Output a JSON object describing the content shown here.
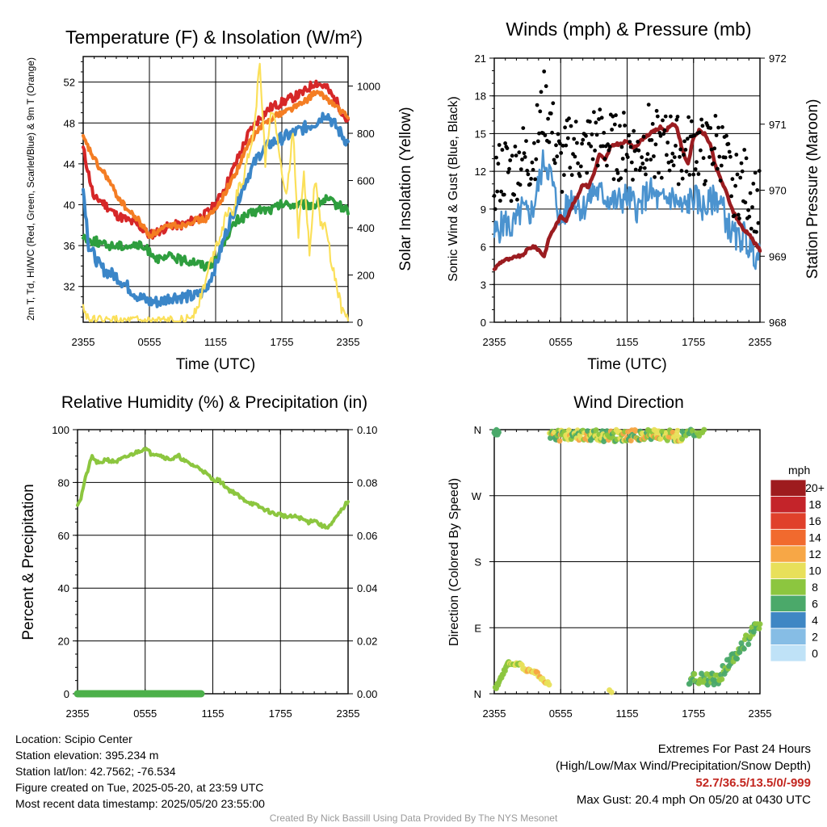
{
  "chart_data": [
    {
      "type": "line",
      "title": "Temperature (F) & Insolation (W/m²)",
      "xlabel": "Time (UTC)",
      "ylabel": "2m T, Td, HI/WC (Red, Green, Scarlet/Blue) & 9m T (Orange)",
      "y2label": "Solar Insolation (Yellow)",
      "x_ticks": [
        "2355",
        "0555",
        "1155",
        "1755",
        "2355"
      ],
      "ylim": [
        28.5,
        54.5
      ],
      "y_ticks": [
        32,
        36,
        40,
        44,
        48,
        52
      ],
      "y2lim": [
        0,
        1125
      ],
      "y2_ticks": [
        0,
        200,
        400,
        600,
        800,
        1000
      ],
      "grid": true,
      "series": [
        {
          "color": "#d62728",
          "axis": "left",
          "hours": [
            0,
            0.5,
            1,
            1.5,
            2,
            3,
            4,
            5,
            6,
            7,
            8,
            9,
            10,
            11,
            12,
            13,
            14,
            15,
            16,
            17,
            18,
            19,
            20,
            21,
            22,
            23,
            24
          ],
          "values": [
            45.5,
            43,
            40.5,
            40.5,
            40,
            39,
            38.5,
            38,
            37,
            37.5,
            38,
            38,
            38.5,
            39,
            40,
            42,
            44.5,
            47,
            48.5,
            49.5,
            50,
            50.5,
            51,
            52,
            51.5,
            50,
            48
          ]
        },
        {
          "color": "#f47d23",
          "axis": "left",
          "hours": [
            0,
            0.5,
            1,
            1.5,
            2,
            3,
            4,
            5,
            6,
            7,
            8,
            9,
            10,
            11,
            12,
            13,
            14,
            15,
            16,
            17,
            18,
            19,
            20,
            21,
            22,
            23,
            24
          ],
          "values": [
            46.5,
            45.5,
            44.5,
            43.5,
            43,
            41,
            39.5,
            38.5,
            37,
            37.5,
            38,
            38,
            38.5,
            38.5,
            39.5,
            41.5,
            43.5,
            46,
            47.5,
            48.5,
            49,
            49.5,
            50,
            51,
            50.5,
            49.5,
            48.5
          ]
        },
        {
          "color": "#2e9e3e",
          "axis": "left",
          "hours": [
            0,
            0.5,
            1,
            2,
            3,
            4,
            5,
            6,
            7,
            8,
            9,
            10,
            11,
            12,
            13,
            14,
            15,
            16,
            17,
            18,
            19,
            20,
            21,
            22,
            23,
            24
          ],
          "values": [
            37,
            36.5,
            36.5,
            36,
            36,
            36,
            36,
            35.5,
            34.5,
            35,
            34.5,
            34.5,
            34,
            34.5,
            37,
            38.5,
            39,
            39.5,
            39.5,
            40,
            40,
            40,
            40,
            40.5,
            40,
            39.5
          ]
        },
        {
          "color": "#3b86c8",
          "axis": "left",
          "hours": [
            0,
            0.25,
            0.5,
            1,
            1.5,
            2,
            3,
            4,
            5,
            6,
            7,
            8,
            9,
            10,
            11,
            12,
            13,
            14,
            15,
            16,
            17,
            18,
            19,
            20,
            21,
            22,
            23,
            24
          ],
          "values": [
            41.5,
            39,
            36,
            35,
            34,
            33.5,
            33,
            32,
            31,
            30.5,
            30.5,
            31,
            31,
            31,
            31.5,
            34,
            37.5,
            40.5,
            43,
            45,
            46,
            46.5,
            47,
            47.5,
            48,
            49,
            47.5,
            46
          ]
        },
        {
          "color": "#fbe05a",
          "axis": "right",
          "hours": [
            0,
            0.5,
            1,
            2,
            4,
            6,
            8,
            9,
            9.5,
            10,
            10.5,
            11,
            11.5,
            12,
            12.5,
            13,
            13.5,
            14,
            14.5,
            15,
            15.5,
            16,
            16.5,
            17,
            17.5,
            18,
            18.5,
            19,
            19.5,
            20,
            20.5,
            21,
            21.5,
            22,
            22.5,
            23,
            23.5,
            24
          ],
          "values": [
            60,
            15,
            5,
            3,
            2,
            2,
            2,
            3,
            10,
            40,
            90,
            160,
            250,
            320,
            380,
            470,
            450,
            560,
            600,
            720,
            820,
            1110,
            680,
            900,
            820,
            620,
            550,
            820,
            380,
            640,
            300,
            600,
            420,
            400,
            250,
            150,
            40,
            20
          ]
        }
      ]
    },
    {
      "type": "line",
      "title": "Winds (mph) & Pressure (mb)",
      "xlabel": "Time (UTC)",
      "ylabel": "Sonic Wind & Gust (Blue, Black)",
      "y2label": "Station Pressure (Maroon)",
      "x_ticks": [
        "2355",
        "0555",
        "1155",
        "1755",
        "2355"
      ],
      "ylim": [
        0,
        21
      ],
      "y_ticks": [
        0,
        3,
        6,
        9,
        12,
        15,
        18,
        21
      ],
      "y2lim": [
        968,
        972
      ],
      "y2_ticks": [
        968,
        969,
        970,
        971,
        972
      ],
      "grid": true,
      "series": [
        {
          "name": "Wind",
          "color": "#4b93cf",
          "axis": "left",
          "hours": [
            0,
            0.5,
            1,
            1.5,
            2,
            2.5,
            3,
            3.5,
            4,
            4.5,
            5,
            5.5,
            6,
            7,
            8,
            9,
            10,
            11,
            12,
            13,
            14,
            15,
            16,
            17,
            18,
            19,
            20,
            20.5,
            21,
            21.5,
            22,
            22.5,
            23,
            23.5,
            24
          ],
          "values": [
            7,
            7.5,
            8,
            7.5,
            8,
            9,
            8.5,
            9,
            11,
            13,
            12,
            10,
            8,
            10,
            9,
            10.5,
            10,
            9.5,
            10,
            9,
            10.5,
            9.5,
            10,
            9,
            10,
            9,
            10,
            9.5,
            8,
            7,
            6.5,
            7,
            6,
            5.5,
            5
          ]
        },
        {
          "name": "Pressure",
          "color": "#9b1c20",
          "axis": "right",
          "hours": [
            0,
            0.5,
            1,
            1.5,
            2,
            2.5,
            3,
            3.5,
            4,
            4.5,
            5,
            5.5,
            6,
            6.5,
            7,
            7.5,
            8,
            8.5,
            9,
            9.5,
            10,
            10.5,
            11,
            11.5,
            12,
            12.5,
            13,
            13.5,
            14,
            14.5,
            15,
            15.5,
            16,
            16.5,
            17,
            17.5,
            18,
            18.5,
            19,
            19.5,
            20,
            20.5,
            21,
            21.5,
            22,
            22.5,
            23,
            23.5,
            24
          ],
          "values": [
            968.8,
            968.9,
            968.95,
            968.95,
            969,
            969,
            969.1,
            969.15,
            969.1,
            969,
            969.3,
            969.45,
            969.6,
            969.55,
            969.75,
            969.9,
            970.1,
            970.05,
            970.25,
            970.55,
            970.45,
            970.65,
            970.7,
            970.7,
            970.75,
            970.65,
            970.7,
            970.8,
            970.85,
            970.9,
            970.95,
            970.9,
            971,
            970.95,
            970.6,
            970.4,
            970.8,
            970.9,
            970.85,
            970.7,
            970.35,
            970.15,
            969.95,
            969.7,
            969.55,
            969.4,
            969.35,
            969.2,
            969.1
          ]
        },
        {
          "name": "Gust",
          "color": "#000000",
          "axis": "left",
          "style": "points"
        }
      ]
    },
    {
      "type": "line",
      "title": "Relative Humidity (%) & Precipitation (in)",
      "ylabel": "Percent & Precipitation",
      "x_ticks": [
        "2355",
        "0555",
        "1155",
        "1755",
        "2355"
      ],
      "ylim": [
        0,
        100
      ],
      "y_ticks": [
        0,
        20,
        40,
        60,
        80,
        100
      ],
      "y2lim": [
        0,
        0.1
      ],
      "y2_ticks": [
        "0.00",
        "0.02",
        "0.04",
        "0.06",
        "0.08",
        "0.10"
      ],
      "grid": true,
      "series": [
        {
          "color": "#8cc63f",
          "axis": "left",
          "hours": [
            0,
            0.3,
            0.6,
            1,
            1.3,
            1.6,
            2,
            2.5,
            3,
            3.5,
            4,
            4.5,
            5,
            5.5,
            6,
            6.5,
            7,
            7.5,
            8,
            8.5,
            9,
            9.5,
            10,
            10.5,
            11,
            11.5,
            12,
            12.5,
            13,
            13.5,
            14,
            14.5,
            15,
            15.5,
            16,
            16.5,
            17,
            17.5,
            18,
            18.5,
            19,
            19.5,
            20,
            20.5,
            21,
            21.5,
            22,
            22.5,
            23,
            23.5,
            24
          ],
          "values": [
            72,
            74,
            80,
            86,
            90,
            88,
            87,
            89,
            88,
            88,
            89,
            90,
            91,
            92,
            93,
            91,
            91,
            90,
            89,
            89,
            90,
            88,
            87,
            86,
            85,
            83,
            81,
            81,
            79,
            77,
            76,
            74,
            73,
            72,
            71,
            70,
            69,
            68,
            68,
            67,
            67,
            67,
            66,
            65,
            66,
            64,
            63,
            64,
            67,
            70,
            73
          ]
        },
        {
          "color": "#4cb04a",
          "axis": "right",
          "style": "dots",
          "hours_range": [
            0,
            11
          ],
          "value": 0
        }
      ]
    },
    {
      "type": "scatter",
      "title": "Wind Direction",
      "ylabel": "Direction (Colored By Speed)",
      "x_ticks": [
        "2355",
        "0555",
        "1155",
        "1755",
        "2355"
      ],
      "y_ticks": [
        "N",
        "E",
        "S",
        "W",
        "N"
      ],
      "grid": true,
      "legend": {
        "title": "mph",
        "placement": "right",
        "labels": [
          "20+",
          "18",
          "16",
          "14",
          "12",
          "10",
          "8",
          "6",
          "4",
          "2",
          "0"
        ],
        "colors": [
          "#9e1b1e",
          "#c4242a",
          "#e0402b",
          "#f16a2e",
          "#f7a746",
          "#e8e05a",
          "#8cc63f",
          "#4ba96a",
          "#3f87c4",
          "#86bde5",
          "#bfe2f7"
        ]
      }
    }
  ],
  "footer": {
    "location": "Location: Scipio Center",
    "elevation": "Station elevation: 395.234 m",
    "latlon": "Station lat/lon: 42.7562; -76.534",
    "created": "Figure created on Tue, 2025-05-20, at 23:59 UTC",
    "recent": "Most recent data timestamp: 2025/05/20 23:55:00",
    "extremes_title": "Extremes For Past 24 Hours",
    "extremes_desc": "(High/Low/Max Wind/Precipitation/Snow Depth)",
    "extremes_values": "52.7/36.5/13.5/0/-999",
    "max_gust": "Max Gust: 20.4 mph On 05/20 at 0430 UTC",
    "credit": "Created By Nick Bassill Using Data Provided By The NYS Mesonet"
  }
}
